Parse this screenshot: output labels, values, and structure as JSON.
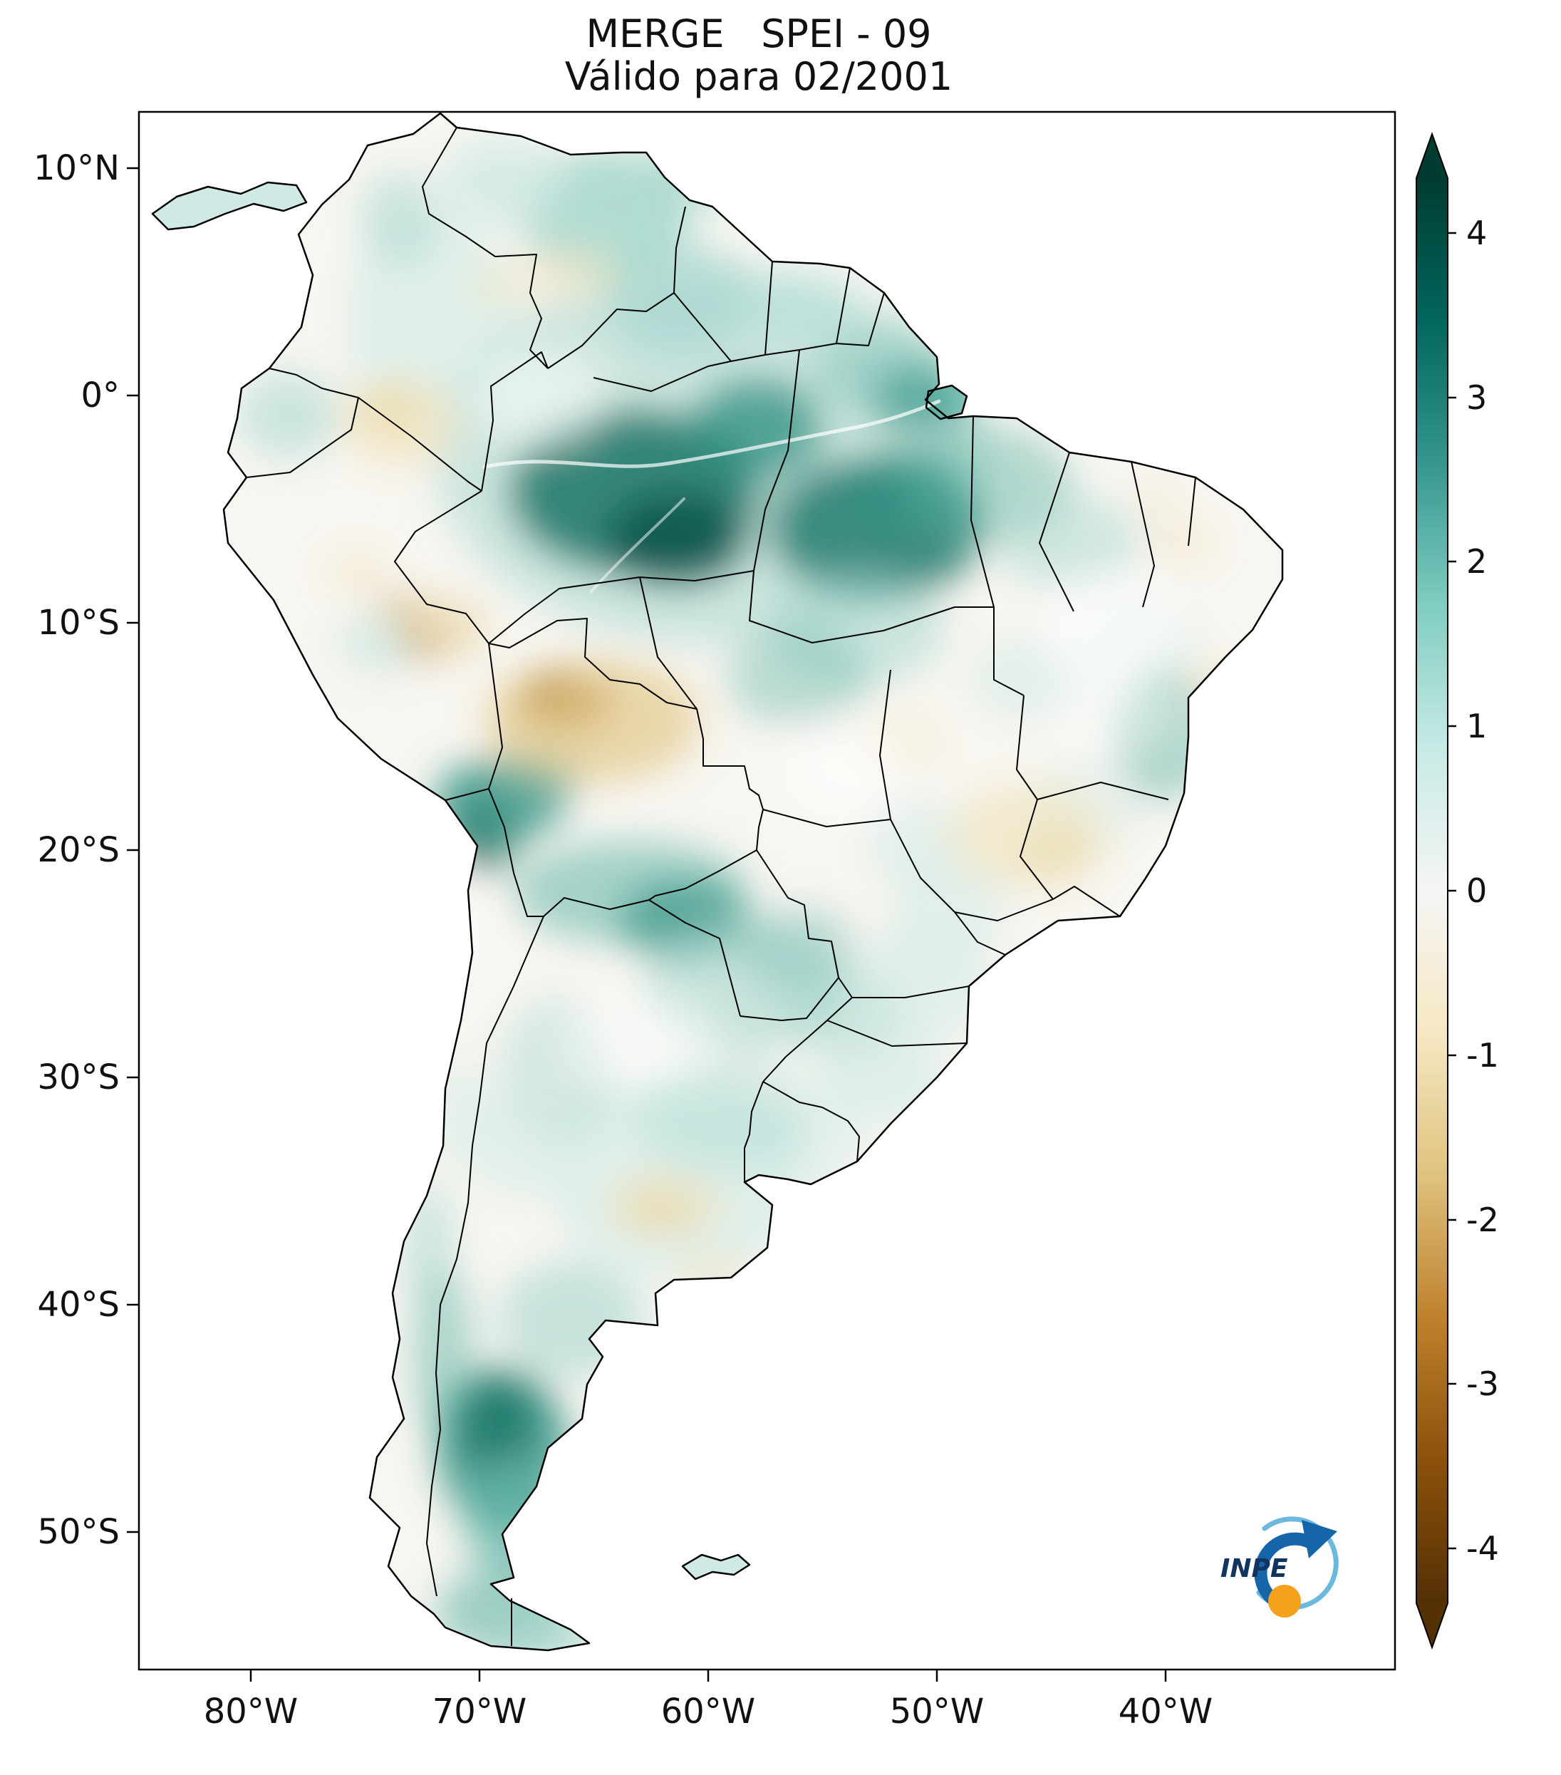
{
  "title": {
    "line1": "MERGE   SPEI - 09",
    "line2": "Válido para 02/2001"
  },
  "axes": {
    "lat_ticks": [
      "10°N",
      "0°",
      "10°S",
      "20°S",
      "30°S",
      "40°S",
      "50°S"
    ],
    "lon_ticks": [
      "80°W",
      "70°W",
      "60°W",
      "50°W",
      "40°W"
    ]
  },
  "colorbar": {
    "tick_labels": [
      "4",
      "3",
      "2",
      "1",
      "0",
      "-1",
      "-2",
      "-3",
      "-4"
    ],
    "value_min": -4,
    "value_max": 4,
    "colors_top_to_bottom": [
      "#003c30",
      "#01665e",
      "#35978f",
      "#80cdc1",
      "#c7eae5",
      "#f5f5f5",
      "#f6e8c3",
      "#dfc27d",
      "#bf812d",
      "#8c510a",
      "#543005"
    ]
  },
  "logo": {
    "text": "INPE"
  }
}
